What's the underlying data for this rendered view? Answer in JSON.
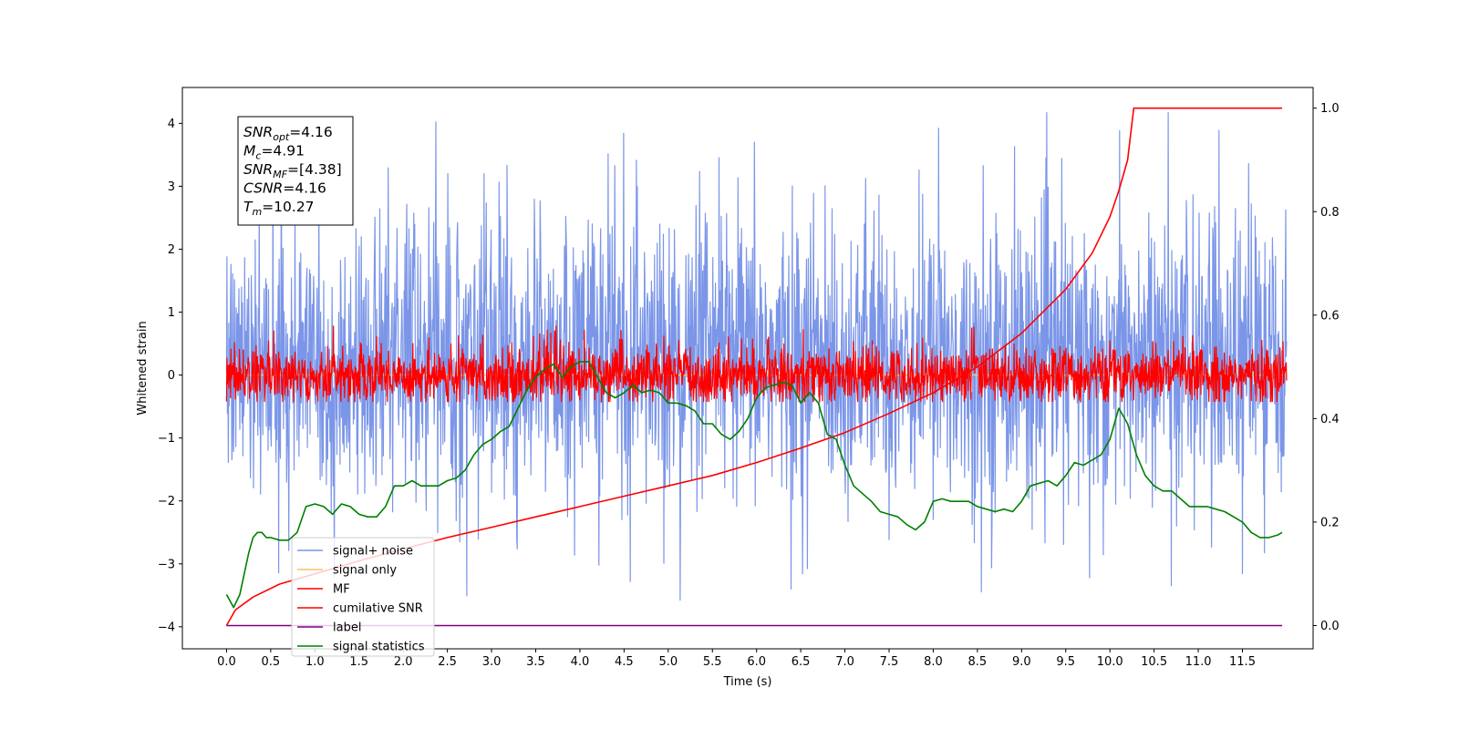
{
  "chart_data": {
    "type": "line",
    "title": "",
    "xlabel": "Time (s)",
    "ylabel": "Whitened strain",
    "xlim": [
      -0.5,
      12.3
    ],
    "ylim": [
      -4.35,
      4.57
    ],
    "y2lim": [
      -0.045,
      1.04
    ],
    "grid": false,
    "legend_position": "lower-left",
    "x_ticks": [
      "0.0",
      "0.5",
      "1.0",
      "1.5",
      "2.0",
      "2.5",
      "3.0",
      "3.5",
      "4.0",
      "4.5",
      "5.0",
      "5.5",
      "6.0",
      "6.5",
      "7.0",
      "7.5",
      "8.0",
      "8.5",
      "9.0",
      "9.5",
      "10.0",
      "10.5",
      "11.0",
      "11.5"
    ],
    "y_ticks": [
      "4",
      "3",
      "2",
      "1",
      "0",
      "−1",
      "−2",
      "−3",
      "−4"
    ],
    "y2_ticks": [
      "1.0",
      "0.8",
      "0.6",
      "0.4",
      "0.2",
      "0.0"
    ],
    "annotation": [
      {
        "base": "SNR",
        "sub": "opt",
        "value": "=4.16"
      },
      {
        "base": "M",
        "sub": "c",
        "value": "=4.91"
      },
      {
        "base": "SNR",
        "sub": "MF",
        "value": "=[4.38]"
      },
      {
        "base": "CSNR",
        "sub": "",
        "value": "=4.16"
      },
      {
        "base": "T",
        "sub": "m",
        "value": "=10.27"
      }
    ],
    "series": [
      {
        "name": "signal+ noise",
        "color": "#7b96e8",
        "axis": "left",
        "kind": "noise",
        "x_range": [
          0.0,
          12.0
        ],
        "mean": 0.25,
        "std": 1.1,
        "min": -3.9,
        "max": 4.17
      },
      {
        "name": "signal only",
        "color": "#f5c26b",
        "axis": "left",
        "kind": "flat",
        "x_range": [
          0.0,
          12.0
        ],
        "value": 0.0
      },
      {
        "name": "MF",
        "color": "#ff0000",
        "axis": "left",
        "kind": "noise",
        "x_range": [
          0.0,
          12.0
        ],
        "mean": 0.0,
        "std": 0.22,
        "min": -0.42,
        "max": 1.0
      },
      {
        "name": "cumilative SNR",
        "color": "#ff0000",
        "axis": "right",
        "x": [
          0.0,
          0.1,
          0.3,
          0.6,
          1.0,
          1.5,
          2.0,
          2.5,
          3.0,
          3.5,
          4.0,
          4.5,
          5.0,
          5.5,
          6.0,
          6.5,
          7.0,
          7.5,
          8.0,
          8.5,
          9.0,
          9.5,
          9.8,
          10.0,
          10.1,
          10.2,
          10.27,
          11.95
        ],
        "values": [
          0.0,
          0.03,
          0.055,
          0.08,
          0.1,
          0.125,
          0.148,
          0.17,
          0.19,
          0.21,
          0.23,
          0.25,
          0.27,
          0.29,
          0.315,
          0.343,
          0.373,
          0.41,
          0.45,
          0.5,
          0.565,
          0.65,
          0.72,
          0.79,
          0.84,
          0.9,
          1.0,
          1.0
        ]
      },
      {
        "name": "label",
        "color": "#800080",
        "axis": "right",
        "x": [
          0.0,
          11.95
        ],
        "values": [
          0.0,
          0.0
        ]
      },
      {
        "name": "signal statistics",
        "color": "#008000",
        "axis": "right",
        "x": [
          0.0,
          0.08,
          0.15,
          0.25,
          0.3,
          0.35,
          0.4,
          0.45,
          0.5,
          0.6,
          0.7,
          0.8,
          0.9,
          1.0,
          1.1,
          1.2,
          1.3,
          1.4,
          1.5,
          1.6,
          1.7,
          1.8,
          1.9,
          2.0,
          2.1,
          2.2,
          2.3,
          2.4,
          2.5,
          2.6,
          2.7,
          2.8,
          2.9,
          3.0,
          3.1,
          3.2,
          3.3,
          3.4,
          3.5,
          3.6,
          3.7,
          3.8,
          3.9,
          4.0,
          4.1,
          4.2,
          4.3,
          4.4,
          4.5,
          4.6,
          4.7,
          4.8,
          4.9,
          5.0,
          5.1,
          5.2,
          5.3,
          5.4,
          5.5,
          5.6,
          5.7,
          5.8,
          5.9,
          6.0,
          6.1,
          6.2,
          6.3,
          6.4,
          6.5,
          6.6,
          6.7,
          6.8,
          6.9,
          7.0,
          7.1,
          7.2,
          7.3,
          7.4,
          7.5,
          7.6,
          7.7,
          7.8,
          7.9,
          8.0,
          8.1,
          8.2,
          8.3,
          8.4,
          8.5,
          8.6,
          8.7,
          8.8,
          8.9,
          9.0,
          9.1,
          9.2,
          9.3,
          9.4,
          9.5,
          9.6,
          9.7,
          9.8,
          9.9,
          10.0,
          10.1,
          10.2,
          10.3,
          10.4,
          10.5,
          10.6,
          10.7,
          10.8,
          10.9,
          11.0,
          11.1,
          11.2,
          11.3,
          11.4,
          11.5,
          11.6,
          11.7,
          11.8,
          11.9,
          11.95
        ],
        "values": [
          0.06,
          0.035,
          0.06,
          0.14,
          0.17,
          0.18,
          0.18,
          0.17,
          0.17,
          0.165,
          0.165,
          0.18,
          0.23,
          0.235,
          0.23,
          0.215,
          0.235,
          0.23,
          0.215,
          0.21,
          0.21,
          0.23,
          0.27,
          0.27,
          0.28,
          0.27,
          0.27,
          0.27,
          0.28,
          0.285,
          0.3,
          0.33,
          0.35,
          0.36,
          0.375,
          0.385,
          0.42,
          0.455,
          0.48,
          0.495,
          0.505,
          0.48,
          0.5,
          0.51,
          0.51,
          0.48,
          0.45,
          0.44,
          0.45,
          0.465,
          0.45,
          0.455,
          0.45,
          0.43,
          0.43,
          0.425,
          0.415,
          0.39,
          0.39,
          0.37,
          0.36,
          0.375,
          0.4,
          0.44,
          0.46,
          0.465,
          0.47,
          0.465,
          0.43,
          0.45,
          0.43,
          0.37,
          0.36,
          0.31,
          0.27,
          0.255,
          0.24,
          0.22,
          0.215,
          0.21,
          0.195,
          0.185,
          0.2,
          0.24,
          0.245,
          0.24,
          0.24,
          0.24,
          0.23,
          0.225,
          0.22,
          0.225,
          0.22,
          0.24,
          0.27,
          0.275,
          0.28,
          0.27,
          0.29,
          0.315,
          0.31,
          0.32,
          0.33,
          0.36,
          0.42,
          0.39,
          0.33,
          0.29,
          0.27,
          0.26,
          0.26,
          0.245,
          0.23,
          0.23,
          0.23,
          0.225,
          0.22,
          0.21,
          0.2,
          0.18,
          0.17,
          0.17,
          0.175,
          0.18
        ]
      }
    ]
  }
}
